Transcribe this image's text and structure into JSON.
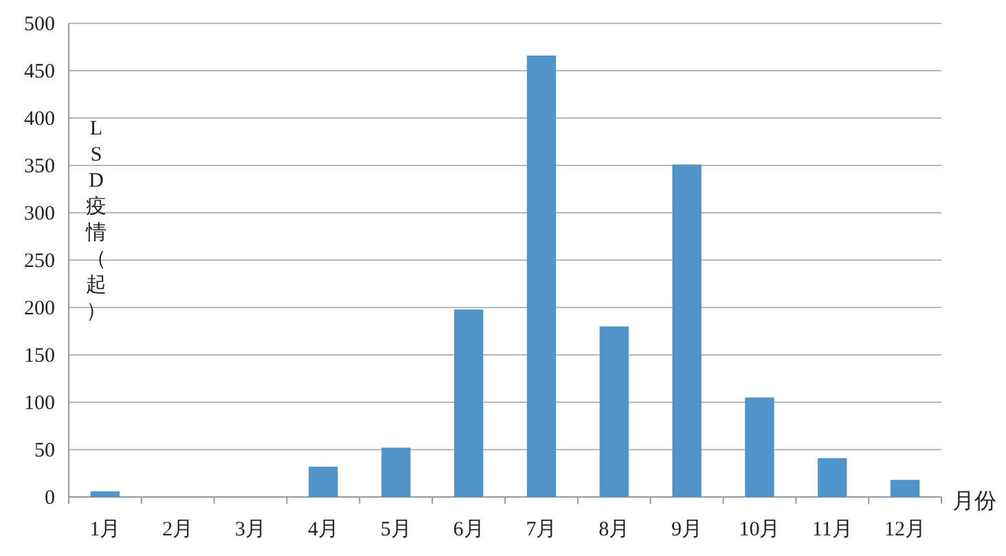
{
  "chart_data": {
    "type": "bar",
    "xlabel": "月份",
    "ylabel": "LSD疫情（起）",
    "categories": [
      "1月",
      "2月",
      "3月",
      "4月",
      "5月",
      "6月",
      "7月",
      "8月",
      "9月",
      "10月",
      "11月",
      "12月"
    ],
    "values": [
      6,
      0,
      0,
      32,
      52,
      198,
      466,
      180,
      351,
      105,
      41,
      18
    ],
    "color": "#4f93c9",
    "ylim": [
      0,
      500
    ],
    "yticks": [
      0,
      50,
      100,
      150,
      200,
      250,
      300,
      350,
      400,
      450,
      500
    ],
    "grid": "y"
  }
}
